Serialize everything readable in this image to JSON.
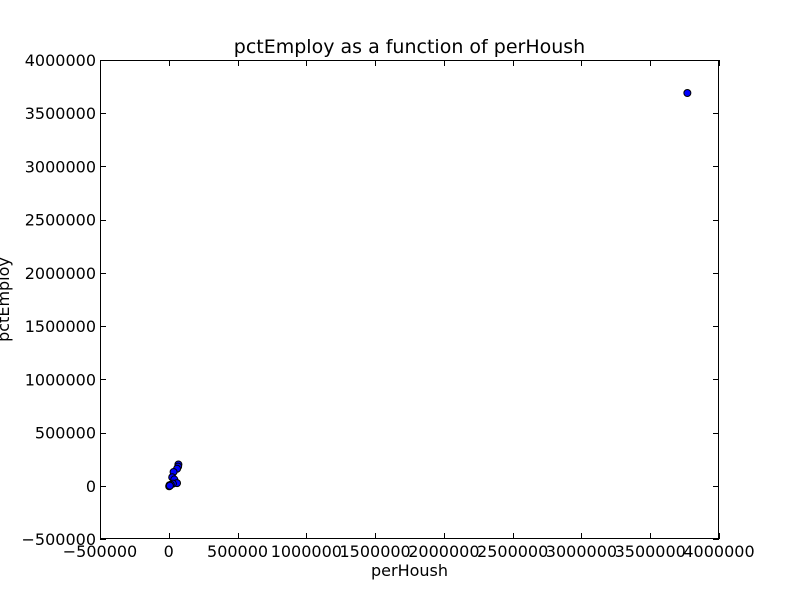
{
  "chart_data": {
    "type": "scatter",
    "title": "pctEmploy as a function of perHoush",
    "xlabel": "perHoush",
    "ylabel": "pctEmploy",
    "xlim": [
      -500000,
      4000000
    ],
    "ylim": [
      -500000,
      4000000
    ],
    "x_ticks": [
      -500000,
      0,
      500000,
      1000000,
      1500000,
      2000000,
      2500000,
      3000000,
      3500000,
      4000000
    ],
    "x_tick_labels": [
      "−500000",
      "0",
      "500000",
      "1000000",
      "1500000",
      "2000000",
      "2500000",
      "3000000",
      "3500000",
      "4000000"
    ],
    "y_ticks": [
      -500000,
      0,
      500000,
      1000000,
      1500000,
      2000000,
      2500000,
      3000000,
      3500000,
      4000000
    ],
    "y_tick_labels": [
      "−500000",
      "0",
      "500000",
      "1000000",
      "1500000",
      "2000000",
      "2500000",
      "3000000",
      "3500000",
      "4000000"
    ],
    "grid": false,
    "marker_color": "#0000ff",
    "marker_edge_color": "#000000",
    "points": [
      {
        "x": 3770000,
        "y": 3690000
      },
      {
        "x": 70000,
        "y": 200000
      },
      {
        "x": 68000,
        "y": 180000
      },
      {
        "x": 60000,
        "y": 160000
      },
      {
        "x": 35000,
        "y": 130000
      },
      {
        "x": 25000,
        "y": 80000
      },
      {
        "x": 40000,
        "y": 60000
      },
      {
        "x": 60000,
        "y": 25000
      },
      {
        "x": 30000,
        "y": 20000
      },
      {
        "x": 15000,
        "y": 10000
      },
      {
        "x": 5000,
        "y": 5000
      },
      {
        "x": 3000,
        "y": -5000
      },
      {
        "x": 8000,
        "y": 0
      }
    ]
  }
}
